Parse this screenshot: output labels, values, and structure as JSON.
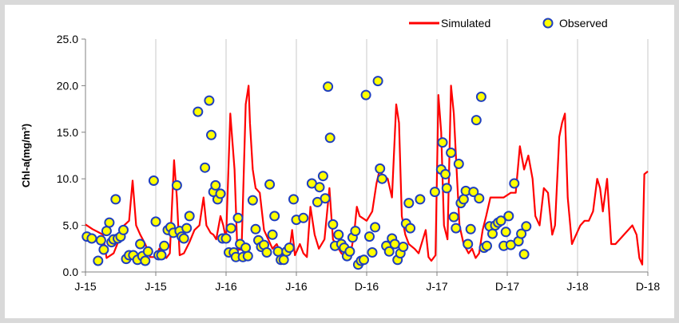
{
  "chart_data": {
    "type": "line",
    "title": "",
    "xlabel": "",
    "ylabel": "Chl-a(mg/m³)",
    "ylim": [
      0,
      25
    ],
    "yticks": [
      "0.0",
      "5.0",
      "10.0",
      "15.0",
      "20.0",
      "25.0"
    ],
    "xticks": [
      "J-15",
      "J-15",
      "J-16",
      "J-16",
      "D-16",
      "J-17",
      "D-17",
      "J-18",
      "D-18"
    ],
    "xlim": [
      0,
      8
    ],
    "grid": {
      "vertical": true,
      "horizontal": false
    },
    "legend": {
      "position": "top-right"
    },
    "series": [
      {
        "name": "Simulated",
        "style": "line",
        "color": "#ff0000",
        "points": [
          [
            0.0,
            5.1
          ],
          [
            0.1,
            4.6
          ],
          [
            0.2,
            4.2
          ],
          [
            0.25,
            4.0
          ],
          [
            0.3,
            1.5
          ],
          [
            0.4,
            2.0
          ],
          [
            0.48,
            3.5
          ],
          [
            0.55,
            5.0
          ],
          [
            0.62,
            5.5
          ],
          [
            0.67,
            9.8
          ],
          [
            0.72,
            5.0
          ],
          [
            0.78,
            4.0
          ],
          [
            0.85,
            3.0
          ],
          [
            0.92,
            1.6
          ],
          [
            1.0,
            1.6
          ],
          [
            1.05,
            2.5
          ],
          [
            1.1,
            1.8
          ],
          [
            1.15,
            1.5
          ],
          [
            1.2,
            2.0
          ],
          [
            1.26,
            12.0
          ],
          [
            1.3,
            8.0
          ],
          [
            1.34,
            1.8
          ],
          [
            1.4,
            2.0
          ],
          [
            1.48,
            3.2
          ],
          [
            1.55,
            4.5
          ],
          [
            1.62,
            5.0
          ],
          [
            1.68,
            8.0
          ],
          [
            1.72,
            5.0
          ],
          [
            1.78,
            4.2
          ],
          [
            1.82,
            4.0
          ],
          [
            1.86,
            3.5
          ],
          [
            1.92,
            6.0
          ],
          [
            1.96,
            5.0
          ],
          [
            2.0,
            3.5
          ],
          [
            2.06,
            17.0
          ],
          [
            2.12,
            11.0
          ],
          [
            2.16,
            2.4
          ],
          [
            2.22,
            2.4
          ],
          [
            2.28,
            18.0
          ],
          [
            2.32,
            20.0
          ],
          [
            2.34,
            16.0
          ],
          [
            2.38,
            11.0
          ],
          [
            2.42,
            9.0
          ],
          [
            2.48,
            8.5
          ],
          [
            2.54,
            4.5
          ],
          [
            2.6,
            3.5
          ],
          [
            2.66,
            2.5
          ],
          [
            2.72,
            3.0
          ],
          [
            2.78,
            2.0
          ],
          [
            2.85,
            1.6
          ],
          [
            2.9,
            2.2
          ],
          [
            2.94,
            4.5
          ],
          [
            2.98,
            1.8
          ],
          [
            3.05,
            3.0
          ],
          [
            3.1,
            2.0
          ],
          [
            3.15,
            1.6
          ],
          [
            3.2,
            7.0
          ],
          [
            3.26,
            4.0
          ],
          [
            3.32,
            2.5
          ],
          [
            3.4,
            3.5
          ],
          [
            3.47,
            9.0
          ],
          [
            3.52,
            3.5
          ],
          [
            3.58,
            2.8
          ],
          [
            3.64,
            2.0
          ],
          [
            3.7,
            1.6
          ],
          [
            3.76,
            1.5
          ],
          [
            3.82,
            4.0
          ],
          [
            3.86,
            7.0
          ],
          [
            3.9,
            6.0
          ],
          [
            4.0,
            5.5
          ],
          [
            4.08,
            6.5
          ],
          [
            4.14,
            9.5
          ],
          [
            4.18,
            10.8
          ],
          [
            4.22,
            10.5
          ],
          [
            4.3,
            10.0
          ],
          [
            4.36,
            8.0
          ],
          [
            4.42,
            18.0
          ],
          [
            4.46,
            16.0
          ],
          [
            4.5,
            6.0
          ],
          [
            4.55,
            4.0
          ],
          [
            4.6,
            3.0
          ],
          [
            4.68,
            2.5
          ],
          [
            4.74,
            2.0
          ],
          [
            4.8,
            3.5
          ],
          [
            4.84,
            4.5
          ],
          [
            4.88,
            1.6
          ],
          [
            4.92,
            1.2
          ],
          [
            4.98,
            1.8
          ],
          [
            5.02,
            19.0
          ],
          [
            5.06,
            15.0
          ],
          [
            5.1,
            5.0
          ],
          [
            5.15,
            3.5
          ],
          [
            5.2,
            20.0
          ],
          [
            5.24,
            17.0
          ],
          [
            5.28,
            11.0
          ],
          [
            5.32,
            5.0
          ],
          [
            5.38,
            3.0
          ],
          [
            5.45,
            2.0
          ],
          [
            5.5,
            2.5
          ],
          [
            5.55,
            1.5
          ],
          [
            5.6,
            2.0
          ],
          [
            5.65,
            4.5
          ],
          [
            5.7,
            6.0
          ],
          [
            5.76,
            8.0
          ],
          [
            5.85,
            8.0
          ],
          [
            5.95,
            8.0
          ],
          [
            6.05,
            8.5
          ],
          [
            6.12,
            8.5
          ],
          [
            6.18,
            13.5
          ],
          [
            6.24,
            11.0
          ],
          [
            6.3,
            12.5
          ],
          [
            6.36,
            10.0
          ],
          [
            6.4,
            6.0
          ],
          [
            6.46,
            5.0
          ],
          [
            6.52,
            9.0
          ],
          [
            6.58,
            8.5
          ],
          [
            6.64,
            4.0
          ],
          [
            6.68,
            5.0
          ],
          [
            6.74,
            14.5
          ],
          [
            6.78,
            16.0
          ],
          [
            6.82,
            17.0
          ],
          [
            6.86,
            8.0
          ],
          [
            6.92,
            3.0
          ],
          [
            6.98,
            4.0
          ],
          [
            7.04,
            5.0
          ],
          [
            7.1,
            5.5
          ],
          [
            7.16,
            5.5
          ],
          [
            7.22,
            6.5
          ],
          [
            7.28,
            10.0
          ],
          [
            7.32,
            9.0
          ],
          [
            7.36,
            6.5
          ],
          [
            7.42,
            10.0
          ],
          [
            7.48,
            3.0
          ],
          [
            7.54,
            3.0
          ],
          [
            7.6,
            3.5
          ],
          [
            7.66,
            4.0
          ],
          [
            7.72,
            4.5
          ],
          [
            7.78,
            5.0
          ],
          [
            7.84,
            4.0
          ],
          [
            7.88,
            1.5
          ],
          [
            7.92,
            0.8
          ],
          [
            7.95,
            10.5
          ],
          [
            8.0,
            10.8
          ]
        ]
      },
      {
        "name": "Observed",
        "style": "marker",
        "color": "#ffff00",
        "edge_color": "#1f3fbf",
        "points": [
          [
            0.02,
            3.8
          ],
          [
            0.09,
            3.6
          ],
          [
            0.18,
            1.2
          ],
          [
            0.22,
            3.4
          ],
          [
            0.26,
            2.4
          ],
          [
            0.3,
            4.4
          ],
          [
            0.34,
            5.3
          ],
          [
            0.37,
            3.2
          ],
          [
            0.4,
            3.5
          ],
          [
            0.43,
            7.8
          ],
          [
            0.46,
            3.6
          ],
          [
            0.5,
            3.8
          ],
          [
            0.54,
            4.5
          ],
          [
            0.58,
            1.4
          ],
          [
            0.62,
            1.8
          ],
          [
            0.68,
            1.8
          ],
          [
            0.74,
            1.3
          ],
          [
            0.78,
            3.0
          ],
          [
            0.81,
            1.7
          ],
          [
            0.85,
            1.2
          ],
          [
            0.89,
            2.2
          ],
          [
            0.97,
            9.8
          ],
          [
            1.0,
            5.4
          ],
          [
            1.04,
            1.8
          ],
          [
            1.08,
            1.8
          ],
          [
            1.12,
            2.8
          ],
          [
            1.17,
            4.5
          ],
          [
            1.21,
            4.8
          ],
          [
            1.25,
            4.2
          ],
          [
            1.3,
            9.3
          ],
          [
            1.34,
            4.4
          ],
          [
            1.37,
            3.8
          ],
          [
            1.4,
            3.6
          ],
          [
            1.44,
            4.7
          ],
          [
            1.48,
            6.0
          ],
          [
            1.6,
            17.2
          ],
          [
            1.7,
            11.2
          ],
          [
            1.76,
            18.4
          ],
          [
            1.79,
            14.7
          ],
          [
            1.82,
            8.6
          ],
          [
            1.85,
            9.3
          ],
          [
            1.88,
            7.8
          ],
          [
            1.92,
            8.4
          ],
          [
            1.95,
            3.6
          ],
          [
            2.0,
            3.6
          ],
          [
            2.04,
            2.1
          ],
          [
            2.07,
            4.7
          ],
          [
            2.11,
            2.1
          ],
          [
            2.14,
            1.6
          ],
          [
            2.17,
            5.8
          ],
          [
            2.2,
            3.0
          ],
          [
            2.24,
            1.6
          ],
          [
            2.28,
            2.6
          ],
          [
            2.31,
            1.7
          ],
          [
            2.38,
            7.7
          ],
          [
            2.42,
            4.6
          ],
          [
            2.46,
            3.4
          ],
          [
            2.5,
            2.7
          ],
          [
            2.54,
            2.9
          ],
          [
            2.58,
            2.1
          ],
          [
            2.62,
            9.4
          ],
          [
            2.66,
            4.0
          ],
          [
            2.69,
            6.0
          ],
          [
            2.74,
            2.2
          ],
          [
            2.78,
            1.3
          ],
          [
            2.82,
            1.3
          ],
          [
            2.86,
            2.2
          ],
          [
            2.9,
            2.6
          ],
          [
            2.96,
            7.8
          ],
          [
            3.0,
            5.6
          ],
          [
            3.1,
            5.8
          ],
          [
            3.22,
            9.5
          ],
          [
            3.3,
            7.5
          ],
          [
            3.33,
            9.1
          ],
          [
            3.38,
            10.3
          ],
          [
            3.41,
            7.9
          ],
          [
            3.45,
            19.9
          ],
          [
            3.48,
            14.4
          ],
          [
            3.52,
            5.1
          ],
          [
            3.55,
            2.8
          ],
          [
            3.6,
            4.0
          ],
          [
            3.64,
            3.0
          ],
          [
            3.68,
            2.6
          ],
          [
            3.72,
            1.7
          ],
          [
            3.76,
            2.2
          ],
          [
            3.8,
            3.7
          ],
          [
            3.84,
            4.4
          ],
          [
            3.88,
            0.8
          ],
          [
            3.92,
            1.2
          ],
          [
            3.96,
            1.3
          ],
          [
            3.99,
            19.0
          ],
          [
            4.04,
            3.8
          ],
          [
            4.08,
            2.1
          ],
          [
            4.12,
            4.8
          ],
          [
            4.16,
            20.5
          ],
          [
            4.19,
            11.1
          ],
          [
            4.22,
            10.0
          ],
          [
            4.28,
            2.8
          ],
          [
            4.32,
            2.2
          ],
          [
            4.36,
            3.6
          ],
          [
            4.4,
            3.0
          ],
          [
            4.44,
            1.3
          ],
          [
            4.48,
            2.0
          ],
          [
            4.52,
            2.7
          ],
          [
            4.56,
            5.2
          ],
          [
            4.6,
            7.4
          ],
          [
            4.62,
            4.7
          ],
          [
            4.76,
            7.8
          ],
          [
            4.97,
            8.6
          ],
          [
            5.06,
            11.0
          ],
          [
            5.08,
            13.9
          ],
          [
            5.12,
            10.5
          ],
          [
            5.14,
            9.0
          ],
          [
            5.2,
            12.8
          ],
          [
            5.24,
            5.9
          ],
          [
            5.27,
            4.7
          ],
          [
            5.31,
            11.6
          ],
          [
            5.34,
            7.4
          ],
          [
            5.38,
            7.8
          ],
          [
            5.41,
            8.7
          ],
          [
            5.44,
            3.0
          ],
          [
            5.48,
            4.6
          ],
          [
            5.52,
            8.6
          ],
          [
            5.56,
            16.3
          ],
          [
            5.6,
            7.9
          ],
          [
            5.63,
            18.8
          ],
          [
            5.67,
            2.6
          ],
          [
            5.71,
            2.8
          ],
          [
            5.75,
            4.9
          ],
          [
            5.79,
            4.1
          ],
          [
            5.83,
            5.0
          ],
          [
            5.87,
            5.3
          ],
          [
            5.91,
            5.5
          ],
          [
            5.95,
            2.8
          ],
          [
            5.98,
            4.3
          ],
          [
            6.02,
            6.0
          ],
          [
            6.05,
            2.9
          ],
          [
            6.1,
            9.5
          ],
          [
            6.16,
            3.3
          ],
          [
            6.2,
            4.1
          ],
          [
            6.24,
            1.9
          ],
          [
            6.27,
            4.9
          ]
        ]
      }
    ]
  }
}
